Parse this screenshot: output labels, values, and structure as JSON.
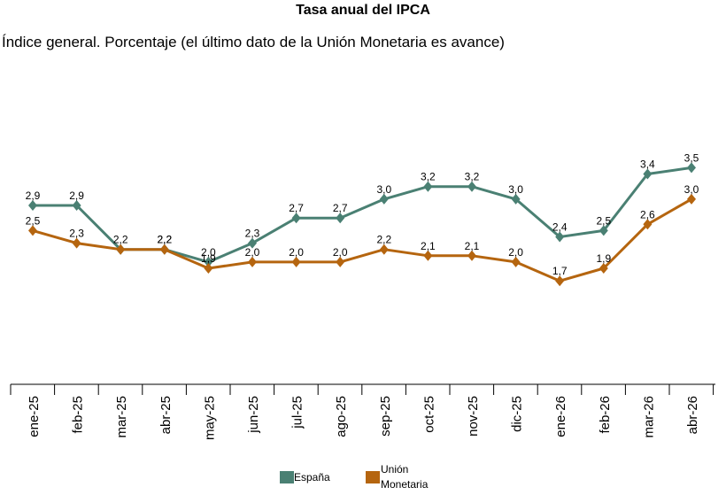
{
  "chart_data": {
    "type": "line",
    "title": "Tasa anual del IPCA",
    "subtitle": "Índice general. Porcentaje (el último dato de la Unión Monetaria es avance)",
    "categories": [
      "ene-25",
      "feb-25",
      "mar-25",
      "abr-25",
      "may-25",
      "jun-25",
      "jul-25",
      "ago-25",
      "sep-25",
      "oct-25",
      "nov-25",
      "dic-25",
      "ene-26",
      "feb-26",
      "mar-26",
      "abr-26"
    ],
    "series": [
      {
        "name": "España",
        "color": "#4a8073",
        "values": [
          2.9,
          2.9,
          2.2,
          2.2,
          2.0,
          2.3,
          2.7,
          2.7,
          3.0,
          3.2,
          3.2,
          3.0,
          2.4,
          2.5,
          3.4,
          3.5
        ],
        "labels": [
          "2,9",
          "2,9",
          "2,2",
          "2,2",
          "2,0",
          "2,3",
          "2,7",
          "2,7",
          "3,0",
          "3,2",
          "3,2",
          "3,0",
          "2,4",
          "2,5",
          "3,4",
          "3,5"
        ]
      },
      {
        "name": "Unión Monetaria",
        "color": "#b5650f",
        "values": [
          2.5,
          2.3,
          2.2,
          2.2,
          1.9,
          2.0,
          2.0,
          2.0,
          2.2,
          2.1,
          2.1,
          2.0,
          1.7,
          1.9,
          2.6,
          3.0
        ],
        "labels": [
          "2,5",
          "2,3",
          "",
          "2,2",
          "1,9",
          "2,0",
          "2,0",
          "2,0",
          "2,2",
          "2,1",
          "2,1",
          "2,0",
          "1,7",
          "1,9",
          "2,6",
          "3,0"
        ]
      }
    ],
    "legend": {
      "position": "bottom",
      "items": [
        "España",
        "Unión Monetaria"
      ]
    },
    "grid": false
  }
}
